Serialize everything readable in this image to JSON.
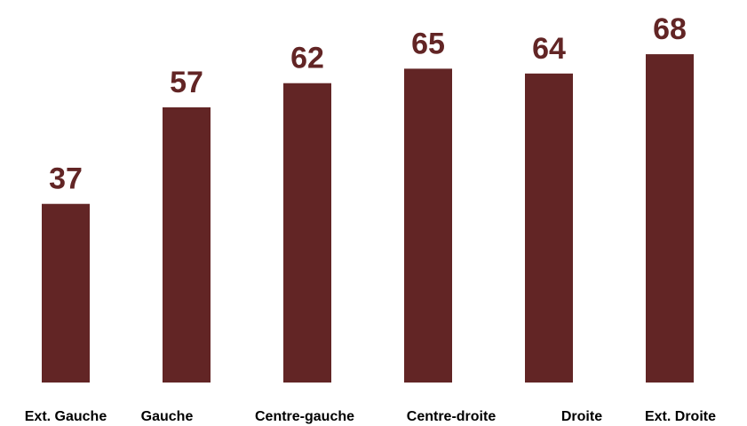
{
  "chart_data": {
    "type": "bar",
    "categories": [
      "Ext. Gauche",
      "Gauche",
      "Centre-gauche",
      "Centre-droite",
      "Droite",
      "Ext. Droite"
    ],
    "values": [
      37,
      57,
      62,
      65,
      64,
      68
    ],
    "title": "",
    "xlabel": "",
    "ylabel": "",
    "ylim": [
      0,
      70
    ],
    "grid": false,
    "legend": "none",
    "data_labels": true
  },
  "colors": {
    "bar": "#622525",
    "value_label": "#622525",
    "category_label": "#000000",
    "background": "#ffffff"
  }
}
